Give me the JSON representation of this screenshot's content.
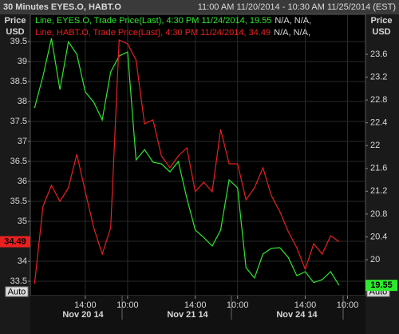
{
  "chart_data": {
    "type": "line",
    "title": "30 Minutes EYES.O, HABT.O",
    "range_label": "11:00 AM 11/20/2014 - 10:30 AM 11/25/2014 (EST)",
    "y_axis_label": [
      "Price",
      "USD"
    ],
    "y2_axis_label": [
      "Price",
      "USD"
    ],
    "categories": [
      null,
      null,
      null,
      null,
      null,
      null,
      "14:00",
      null,
      null,
      null,
      null,
      "10:00",
      null,
      null,
      null,
      null,
      null,
      null,
      null,
      "14:00",
      null,
      null,
      null,
      null,
      "10:00",
      null,
      null,
      null,
      null,
      null,
      null,
      null,
      "14:00",
      null,
      null,
      null,
      null,
      "10:00"
    ],
    "date_labels": [
      "Nov 20 14",
      "Nov 21 14",
      "Nov 24 14"
    ],
    "ylim": [
      33.14,
      40.18
    ],
    "yticks": [
      33.5,
      34,
      34.5,
      35,
      35.5,
      36,
      36.5,
      37,
      37.5,
      38,
      38.5,
      39,
      39.5
    ],
    "y2lim": [
      19.37,
      24.3
    ],
    "y2ticks": [
      20,
      20.4,
      20.8,
      21.2,
      21.6,
      22,
      22.4,
      22.8,
      23.2,
      23.6
    ],
    "grid": true,
    "series": [
      {
        "name": "Line, EYES.O, Trade Price(Last), 4:30 PM 11/24/2014, 19.55",
        "legend_suffix": "N/A, N/A,",
        "color": "#2ee82e",
        "axis": "y2",
        "last_label": "19.55",
        "values": [
          22.66,
          23.22,
          23.88,
          22.98,
          23.82,
          23.6,
          22.94,
          22.76,
          22.45,
          23.29,
          23.57,
          23.64,
          21.75,
          21.93,
          21.71,
          21.68,
          21.54,
          21.72,
          21.08,
          20.52,
          20.39,
          20.24,
          20.52,
          21.4,
          21.26,
          19.86,
          19.68,
          20.1,
          20.2,
          20.21,
          20.04,
          19.72,
          19.79,
          19.6,
          19.65,
          19.79,
          19.55,
          null
        ]
      },
      {
        "name": "Line, HABT.O, Trade Price(Last), 4:30 PM 11/24/2014, 34.49",
        "legend_suffix": "N/A, N/A,",
        "color": "#e82020",
        "axis": "y",
        "last_label": "34.49",
        "values": [
          33.44,
          35.38,
          35.9,
          35.5,
          35.84,
          36.68,
          35.74,
          34.84,
          34.18,
          34.84,
          39.54,
          39.44,
          39.04,
          37.44,
          37.54,
          36.64,
          36.34,
          36.64,
          36.84,
          35.74,
          35.98,
          35.74,
          37.3,
          36.44,
          36.44,
          35.54,
          35.84,
          36.34,
          35.64,
          35.24,
          34.74,
          34.34,
          33.8,
          34.44,
          34.18,
          34.64,
          34.49,
          null
        ]
      }
    ],
    "auto_buttons": [
      "Auto",
      "Auto"
    ]
  }
}
